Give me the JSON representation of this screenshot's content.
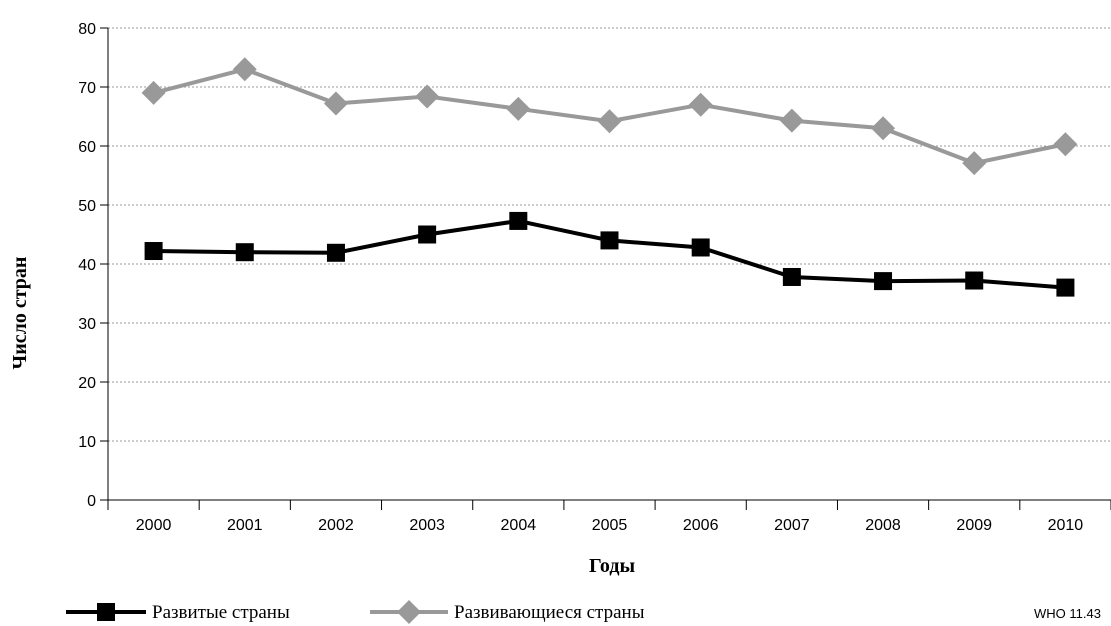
{
  "chart_data": {
    "type": "line",
    "title": "",
    "xlabel": "Годы",
    "ylabel": "Число стран",
    "x": [
      "2000",
      "2001",
      "2002",
      "2003",
      "2004",
      "2005",
      "2006",
      "2007",
      "2008",
      "2009",
      "2010"
    ],
    "ylim": [
      0,
      80
    ],
    "yticks": [
      0,
      10,
      20,
      30,
      40,
      50,
      60,
      70,
      80
    ],
    "grid": "horizontal-dotted",
    "legend_position": "bottom",
    "series": [
      {
        "name": "Развитые страны",
        "marker": "square",
        "color": "#000000",
        "values": [
          42.2,
          42,
          41.9,
          45,
          47.3,
          44,
          42.8,
          37.8,
          37.1,
          37.2,
          36
        ]
      },
      {
        "name": "Развивающиеся страны",
        "marker": "diamond",
        "color": "#999999",
        "values": [
          69,
          73,
          67.2,
          68.4,
          66.3,
          64.2,
          67,
          64.3,
          63,
          57.1,
          60.3
        ]
      }
    ],
    "source_note": "WHO 11.43"
  }
}
